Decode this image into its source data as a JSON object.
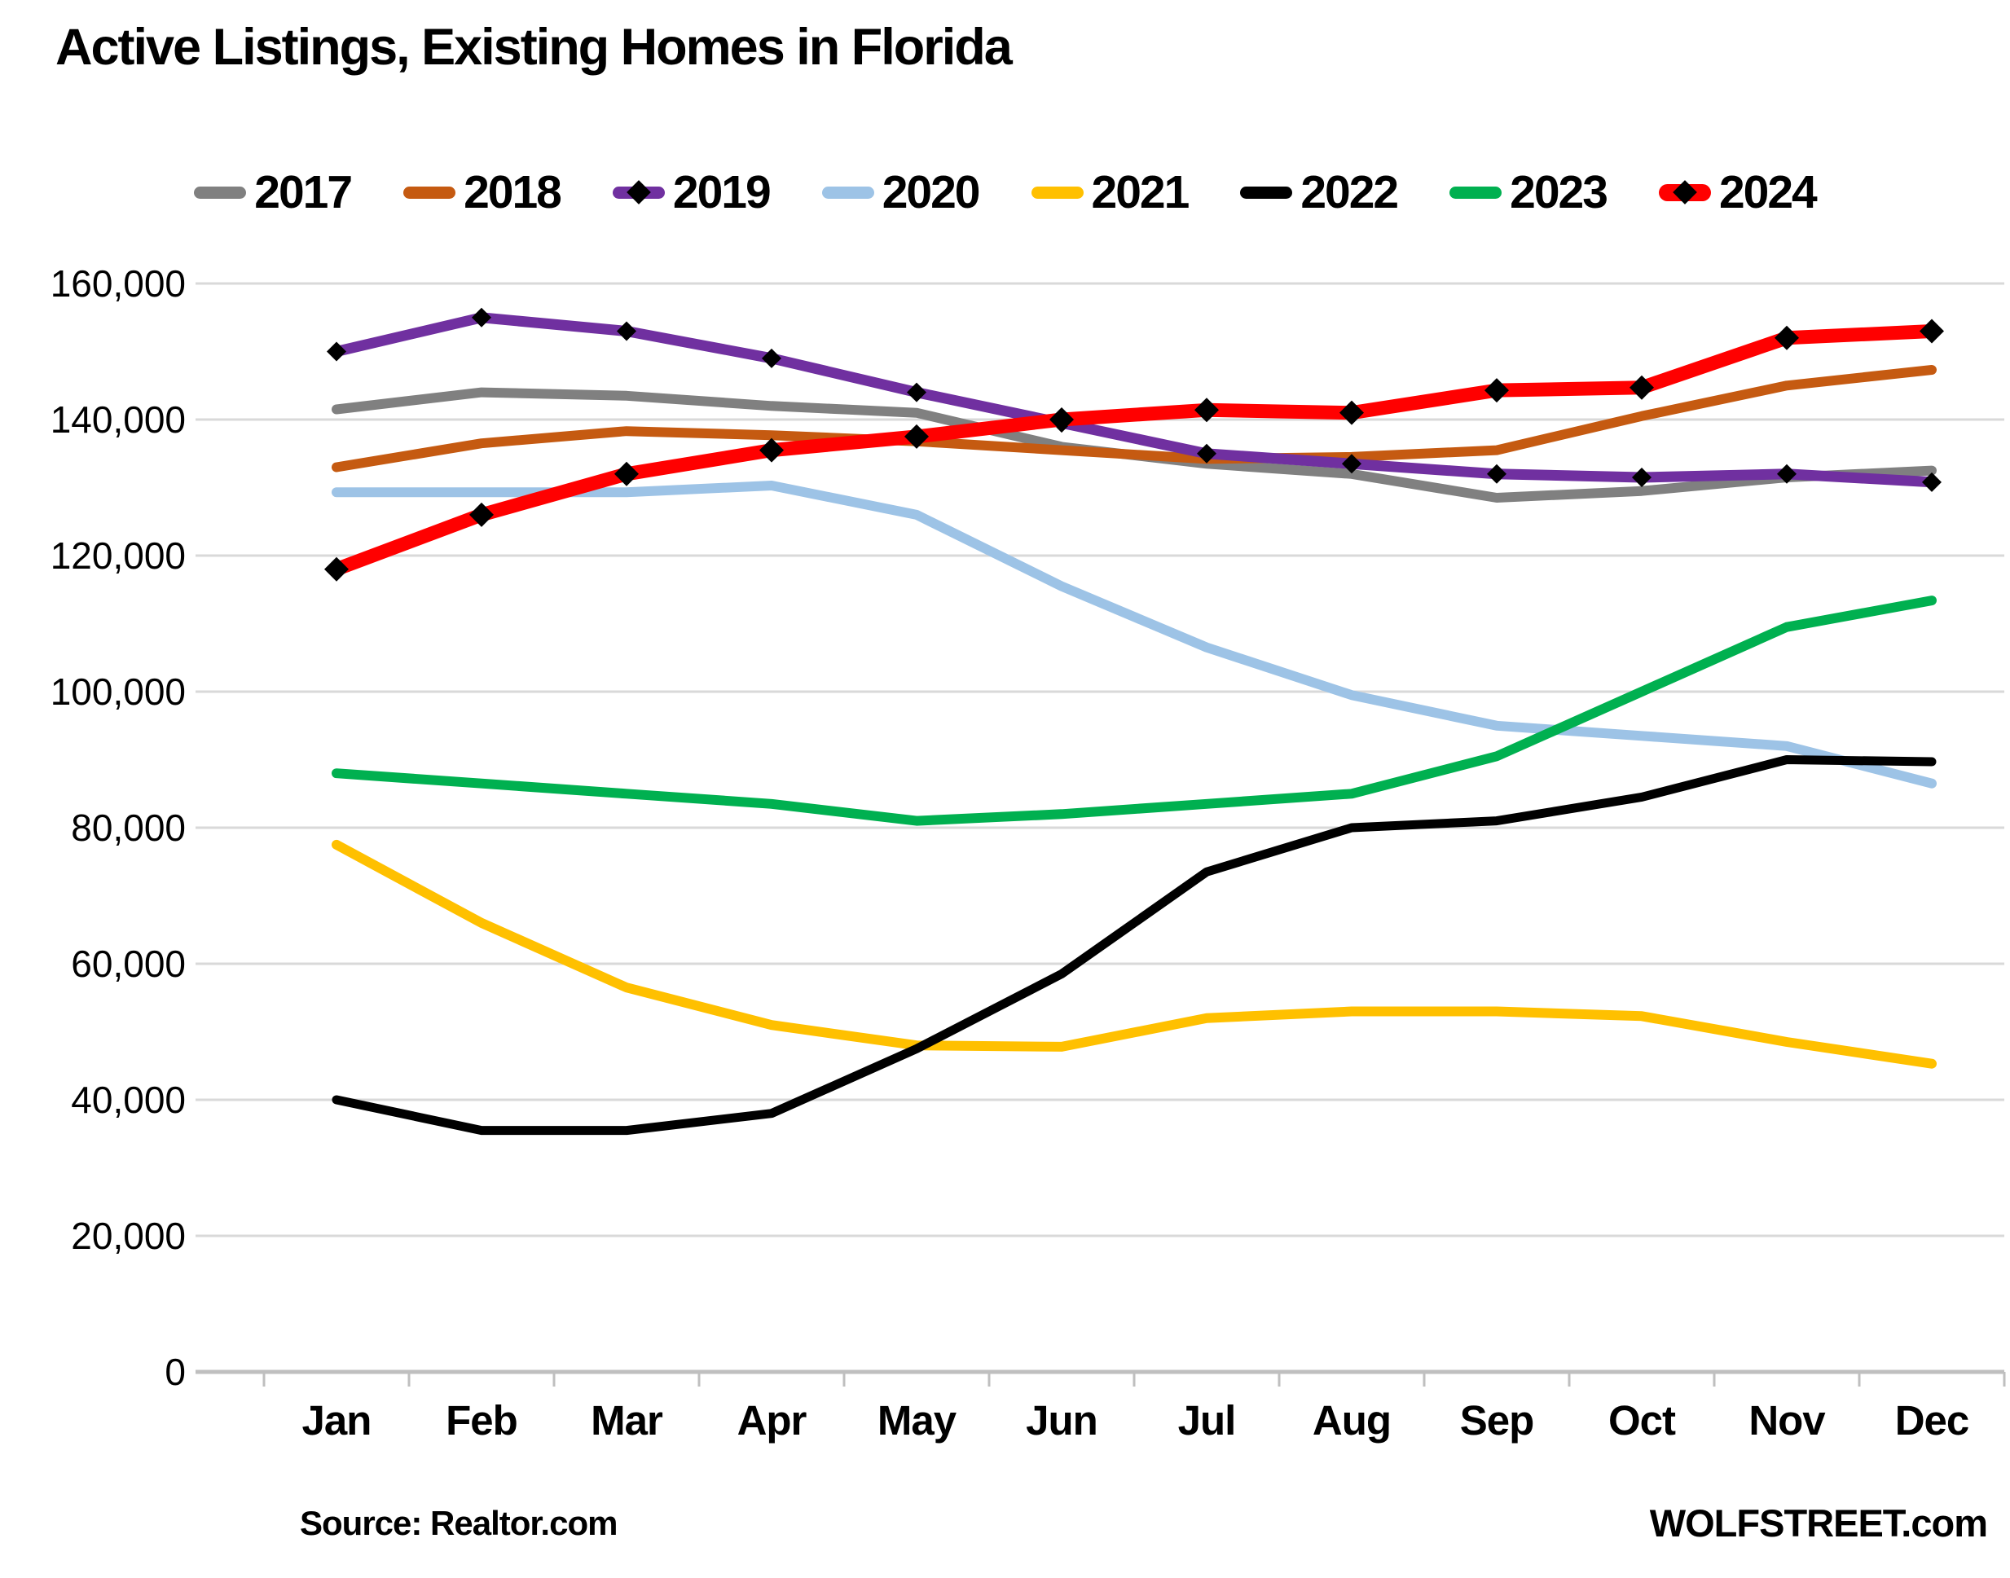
{
  "page": {
    "source_note": "Source: Realtor.com",
    "branding": "WOLFSTREET.com"
  },
  "chart_data": {
    "type": "line",
    "title": "Active Listings, Existing Homes in Florida",
    "categories": [
      "Jan",
      "Feb",
      "Mar",
      "Apr",
      "May",
      "Jun",
      "Jul",
      "Aug",
      "Sep",
      "Oct",
      "Nov",
      "Dec"
    ],
    "ylim": [
      0,
      160000
    ],
    "y_tick_step": 20000,
    "y_tick_labels": [
      "0",
      "20,000",
      "40,000",
      "60,000",
      "80,000",
      "100,000",
      "120,000",
      "140,000",
      "160,000"
    ],
    "grid": "horizontal",
    "legend_position": "top",
    "colors": {
      "gridline": "#D9D9D9",
      "axis": "#BFBFBF",
      "marker": "#000000"
    },
    "series": [
      {
        "name": "2017",
        "color": "#808080",
        "marker": false,
        "emphasis": false,
        "values": [
          141500,
          144000,
          143500,
          142000,
          141000,
          136000,
          133500,
          132000,
          128500,
          129500,
          131500,
          132500
        ]
      },
      {
        "name": "2018",
        "color": "#C55A11",
        "marker": false,
        "emphasis": false,
        "values": [
          133000,
          136500,
          138300,
          137700,
          136800,
          135500,
          134200,
          134500,
          135500,
          140500,
          145000,
          147300
        ]
      },
      {
        "name": "2019",
        "color": "#7030A0",
        "marker": true,
        "emphasis": false,
        "values": [
          150000,
          155000,
          153000,
          149000,
          144000,
          139500,
          135000,
          133500,
          132000,
          131500,
          132000,
          130800
        ]
      },
      {
        "name": "2020",
        "color": "#9DC3E6",
        "marker": false,
        "emphasis": false,
        "values": [
          129300,
          129300,
          129300,
          130300,
          126000,
          115500,
          106500,
          99500,
          95000,
          93500,
          92000,
          86500
        ]
      },
      {
        "name": "2021",
        "color": "#FFC000",
        "marker": false,
        "emphasis": false,
        "values": [
          77500,
          66000,
          56500,
          51000,
          48000,
          47800,
          52000,
          53000,
          53000,
          52300,
          48500,
          45300
        ]
      },
      {
        "name": "2022",
        "color": "#000000",
        "marker": false,
        "emphasis": false,
        "values": [
          40000,
          35500,
          35500,
          38000,
          47500,
          58500,
          73500,
          80000,
          81000,
          84500,
          90000,
          89700
        ]
      },
      {
        "name": "2023",
        "color": "#00B050",
        "marker": false,
        "emphasis": false,
        "values": [
          88000,
          86500,
          85000,
          83500,
          81000,
          82000,
          83500,
          85000,
          90500,
          100000,
          109500,
          113400
        ]
      },
      {
        "name": "2024",
        "color": "#FF0000",
        "marker": true,
        "emphasis": true,
        "values": [
          118000,
          126000,
          132000,
          135500,
          137500,
          140000,
          141400,
          141000,
          144300,
          144700,
          152000,
          153000
        ]
      }
    ]
  }
}
